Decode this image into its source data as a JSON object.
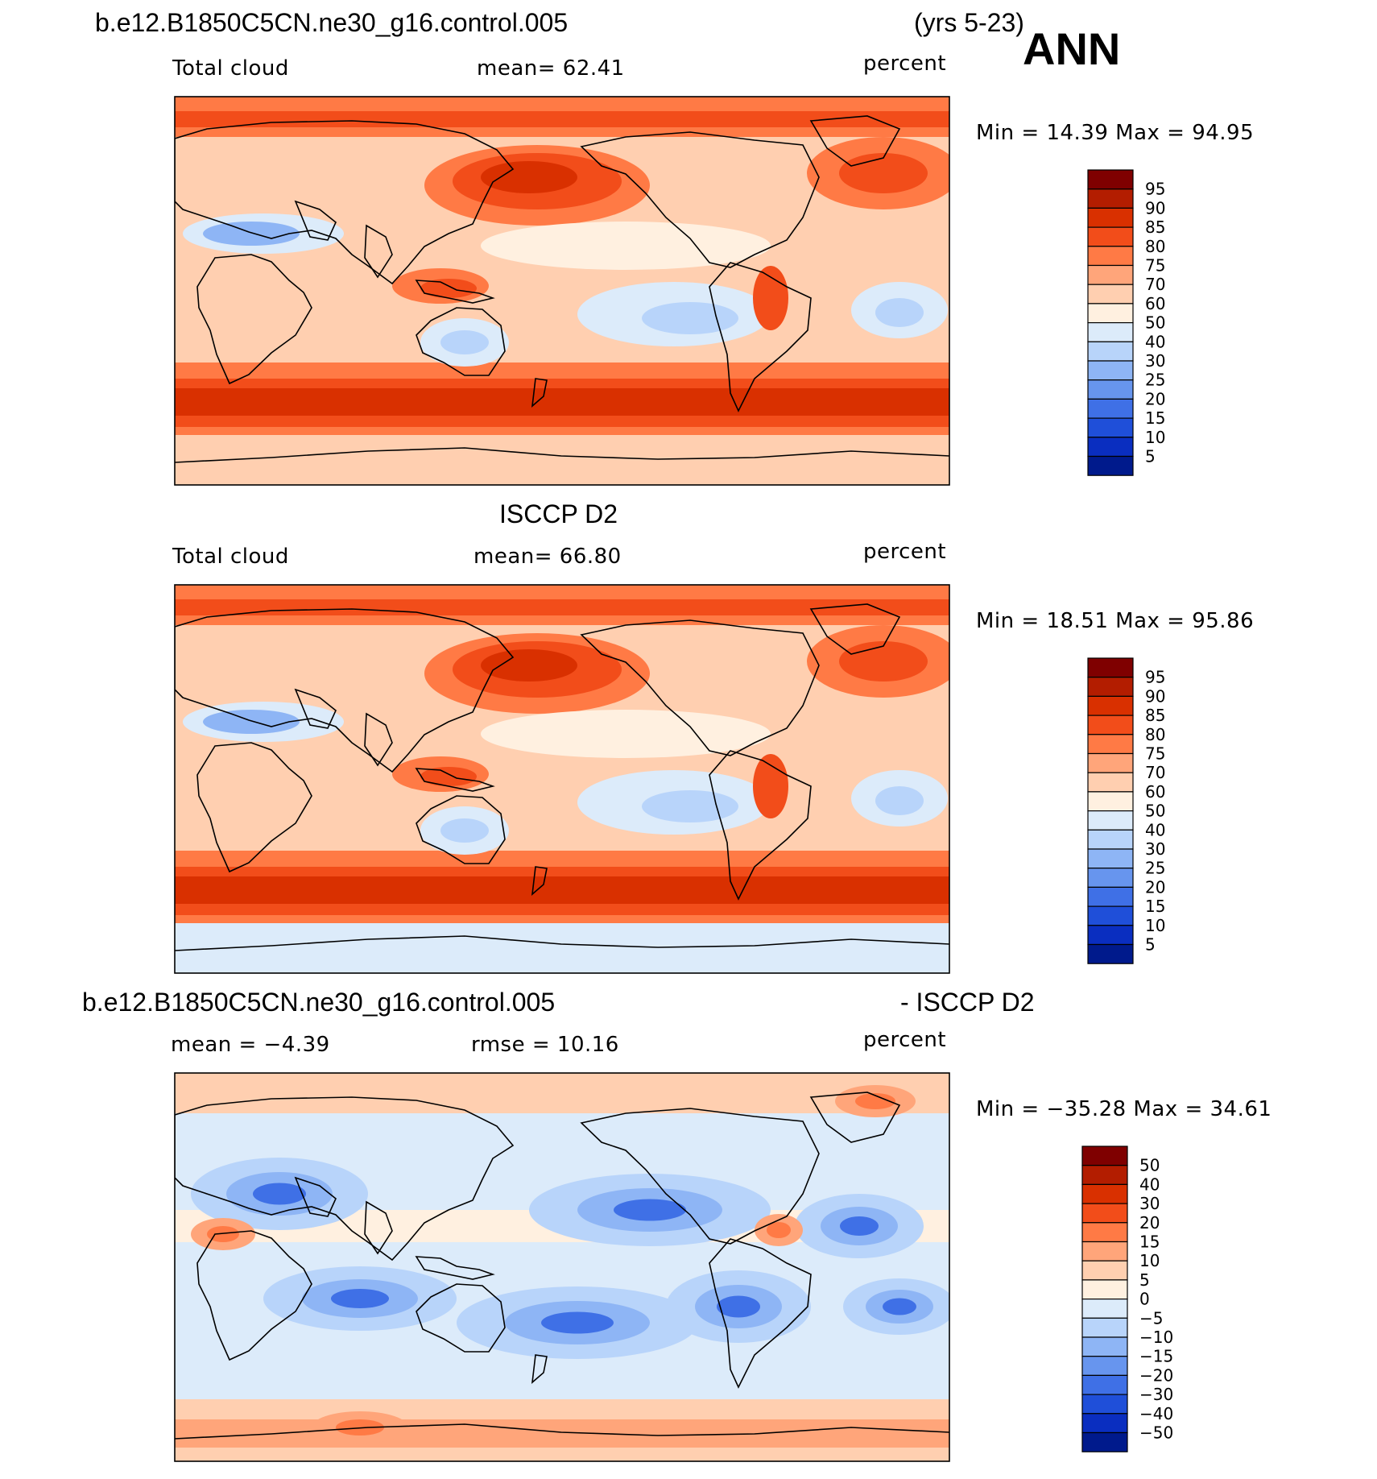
{
  "header": {
    "case_name": "b.e12.B1850C5CN.ne30_g16.control.005",
    "years": "(yrs 5-23)",
    "season": "ANN"
  },
  "panels": [
    {
      "title": "",
      "left_label": "Total cloud",
      "mid_label": "mean=   62.41",
      "units": "percent",
      "minmax": "Min =    14.39  Max =    94.95",
      "colorbar_labels": [
        "95",
        "90",
        "85",
        "80",
        "75",
        "70",
        "60",
        "50",
        "40",
        "30",
        "25",
        "20",
        "15",
        "10",
        "5"
      ]
    },
    {
      "title": "ISCCP D2",
      "left_label": "Total cloud",
      "mid_label": "mean=   66.80",
      "units": "percent",
      "minmax": "Min =    18.51  Max =    95.86",
      "colorbar_labels": [
        "95",
        "90",
        "85",
        "80",
        "75",
        "70",
        "60",
        "50",
        "40",
        "30",
        "25",
        "20",
        "15",
        "10",
        "5"
      ]
    },
    {
      "title_left": "b.e12.B1850C5CN.ne30_g16.control.005",
      "title_right": "- ISCCP D2",
      "left_label": "mean  =   −4.39",
      "mid_label": "rmse  =   10.16",
      "units": "percent",
      "minmax": "Min = −35.28  Max =    34.61",
      "colorbar_labels": [
        "50",
        "40",
        "30",
        "20",
        "15",
        "10",
        "5",
        "0",
        "−5",
        "−10",
        "−15",
        "−20",
        "−30",
        "−40",
        "−50"
      ]
    }
  ],
  "palette": [
    "#7f0000",
    "#b31d00",
    "#d93000",
    "#f24d1a",
    "#ff7a45",
    "#ffa57a",
    "#ffcfb0",
    "#fff0e0",
    "#dcebfa",
    "#b8d4fa",
    "#8eb5f5",
    "#6795ee",
    "#3f70e6",
    "#1f4fd9",
    "#0a2ec0",
    "#001a8c"
  ]
}
